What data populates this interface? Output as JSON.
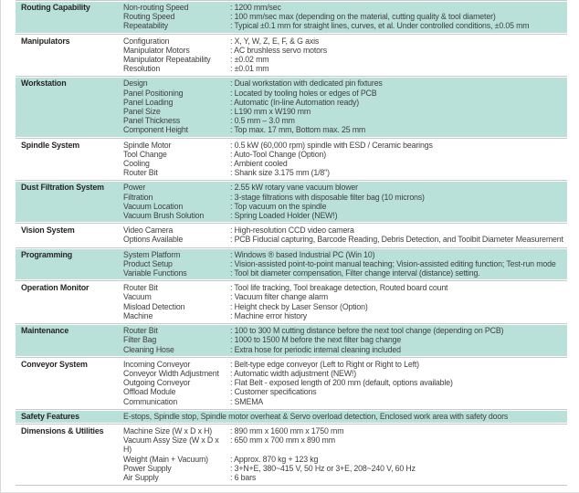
{
  "page": {
    "background": "#ffffff",
    "accent_teal": "#b9e1d9",
    "divider_color": "#c9c9c9",
    "text_color": "#3f3f3f",
    "category_color": "#262626"
  },
  "table": {
    "sections": [
      {
        "category": "Routing Capability",
        "shaded": true,
        "rows": [
          {
            "label": "Non-routing Speed",
            "value": ": 1200 mm/sec"
          },
          {
            "label": "Routing Speed",
            "value": ": 100 mm/sec max (depending on the material, cutting quality & tool diameter)"
          },
          {
            "label": "Repeatability",
            "value": ": Typical ±0.1 mm for straight lines, curves, et al. Under controlled conditions, ±0.05 mm"
          }
        ]
      },
      {
        "category": "Manipulators",
        "shaded": false,
        "rows": [
          {
            "label": "Configuration",
            "value": ": X, Y, W, Z, E, F, & G axis"
          },
          {
            "label": "Manipulator Motors",
            "value": ": AC brushless servo motors"
          },
          {
            "label": "Manipulator Repeatability",
            "value": ": ±0.02 mm"
          },
          {
            "label": "Resolution",
            "value": ": ±0.01 mm"
          }
        ]
      },
      {
        "category": "Workstation",
        "shaded": true,
        "rows": [
          {
            "label": "Design",
            "value": ": Dual workstation with dedicated pin fixtures"
          },
          {
            "label": "Panel Positioning",
            "value": ": Located by tooling holes or edges of PCB"
          },
          {
            "label": "Panel Loading",
            "value": ": Automatic (In-line Automation ready)"
          },
          {
            "label": "Panel Size",
            "value": ": L190 mm x W190 mm"
          },
          {
            "label": "Panel Thickness",
            "value": ": 0.5 mm – 3.0 mm"
          },
          {
            "label": "Component Height",
            "value": ": Top max. 17 mm, Bottom max. 25 mm"
          }
        ]
      },
      {
        "category": "Spindle System",
        "shaded": false,
        "rows": [
          {
            "label": "Spindle Motor",
            "value": ": 0.5 kW (60,000 rpm) spindle with ESD / Ceramic bearings"
          },
          {
            "label": "Tool Change",
            "value": ": Auto-Tool Change (Option)"
          },
          {
            "label": "Cooling",
            "value": ": Ambient cooled"
          },
          {
            "label": "Router Bit",
            "value": ": Shank size 3.175 mm (1/8\")"
          }
        ]
      },
      {
        "category": "Dust Filtration System",
        "shaded": true,
        "rows": [
          {
            "label": "Power",
            "value": ": 2.55 kW rotary vane vacuum blower"
          },
          {
            "label": "Filtration",
            "value": ": 3-stage filtrations with disposable filter bag (10 microns)"
          },
          {
            "label": "Vacuum Location",
            "value": ": Top vacuum on the spindle"
          },
          {
            "label": "Vacuum Brush Solution",
            "value": ": Spring Loaded Holder (NEW!)"
          }
        ]
      },
      {
        "category": "Vision System",
        "shaded": false,
        "rows": [
          {
            "label": "Video Camera",
            "value": ": High-resolution CCD video camera"
          },
          {
            "label": "Options Available",
            "value": ": PCB Fiducial capturing, Barcode Reading,  Debris Detection, and Toolbit Diameter Measurement"
          }
        ]
      },
      {
        "category": "Programming",
        "shaded": true,
        "rows": [
          {
            "label": "System Platform",
            "value": ": Windows ® based Industrial PC (Win 10)"
          },
          {
            "label": "Product Setup",
            "value": ": Vision-assisted point-to-point manual teaching; Vision-assisted editing function; Test-run mode"
          },
          {
            "label": "Variable Functions",
            "value": ": Tool bit diameter compensation, Filter change interval (distance) setting."
          }
        ]
      },
      {
        "category": "Operation Monitor",
        "shaded": false,
        "rows": [
          {
            "label": "Router Bit",
            "value": ": Tool life tracking, Tool breakage detection, Routed board count"
          },
          {
            "label": "Vacuum",
            "value": ": Vacuum filter change alarm"
          },
          {
            "label": "Misload Detection",
            "value": ": Height check by Laser Sensor (Option)"
          },
          {
            "label": "Machine",
            "value": ": Machine error history"
          }
        ]
      },
      {
        "category": "Maintenance",
        "shaded": true,
        "rows": [
          {
            "label": "Router Bit",
            "value": ": 100 to 300 M cutting distance before the next tool change (depending on PCB)"
          },
          {
            "label": "Filter Bag",
            "value": ": 1000 to 1500 M before the next filter bag change"
          },
          {
            "label": "Cleaning Hose",
            "value": ": Extra hose for periodic internal cleaning included"
          }
        ]
      },
      {
        "category": "Conveyor System",
        "shaded": false,
        "rows": [
          {
            "label": "Incoming Conveyor",
            "value": ": Belt-type edge conveyor (Left to Right or Right to Left)"
          },
          {
            "label": "Conveyor Width Adjustment",
            "value": ": Automatic width adjustment (NEW!)"
          },
          {
            "label": "Outgoing Conveyor",
            "value": ": Flat Belt - exposed length of 200 mm (default, options available)"
          },
          {
            "label": "Offload Module",
            "value": ": Customer specifications"
          },
          {
            "label": "Communication",
            "value": ": SMEMA"
          }
        ]
      },
      {
        "category": "Safety Features",
        "shaded": true,
        "text": "E-stops, Spindle stop, Spindle motor overheat & Servo overload detection, Enclosed work area with safety doors"
      },
      {
        "category": "Dimensions & Utilities",
        "shaded": false,
        "rows": [
          {
            "label": "Machine Size (W x D x H)",
            "value": ": 890 mm x 1600 mm x 1750 mm"
          },
          {
            "label": "Vacuum Assy Size (W x D x H)",
            "value": ": 650 mm x 700 mm x 890 mm"
          },
          {
            "label": "Weight (Main + Vacuum)",
            "value": ": Approx. 870 kg + 123 kg"
          },
          {
            "label": "Power Supply",
            "value": ": 3+N+E, 380~415 V, 50 Hz or 3+E, 208~240 V, 60 Hz"
          },
          {
            "label": "Air Supply",
            "value": ": 6 bars"
          }
        ]
      }
    ]
  }
}
